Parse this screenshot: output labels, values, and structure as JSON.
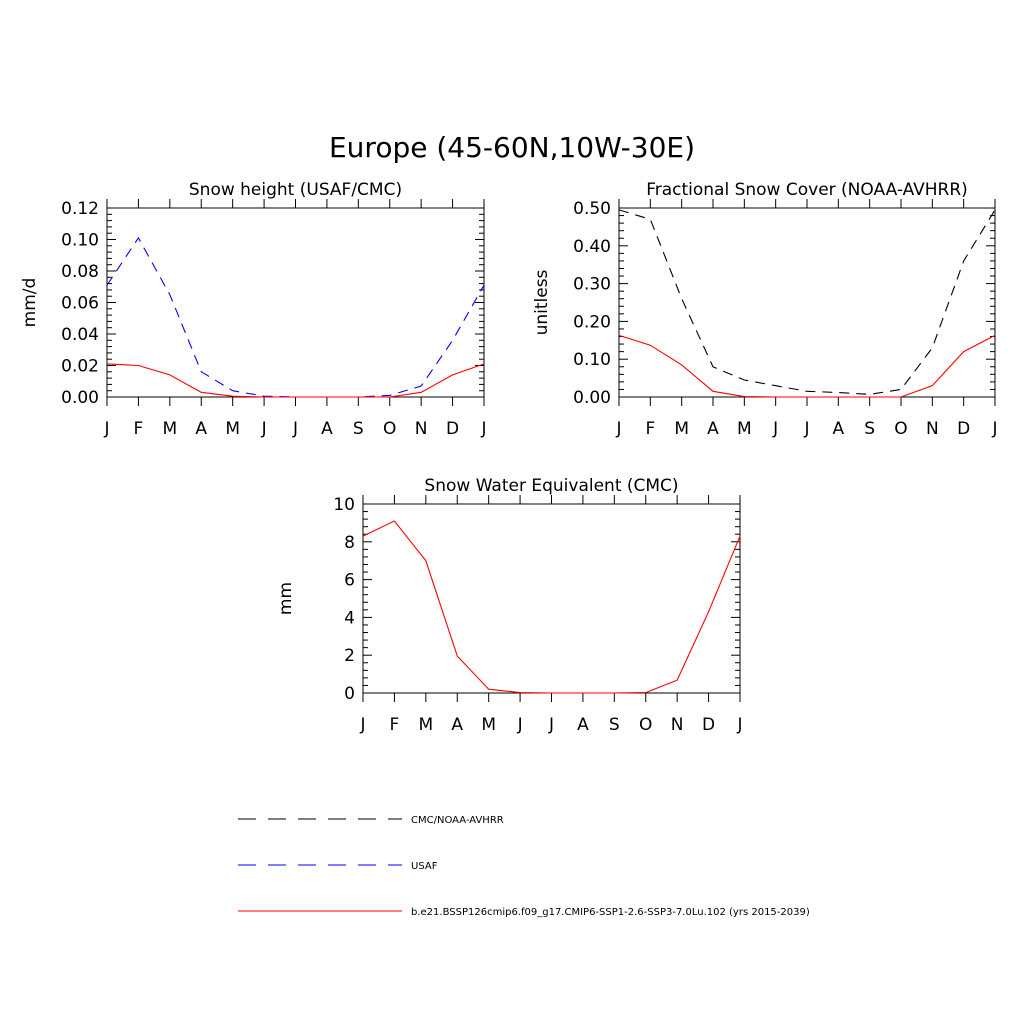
{
  "page": {
    "title": "Europe (45-60N,10W-30E)"
  },
  "months": [
    "J",
    "F",
    "M",
    "A",
    "M",
    "J",
    "J",
    "A",
    "S",
    "O",
    "N",
    "D",
    "J"
  ],
  "legend": [
    {
      "label": "CMC/NOAA-AVHRR",
      "color": "#000000",
      "dash": "dashed"
    },
    {
      "label": "USAF",
      "color": "#0000ff",
      "dash": "dashed"
    },
    {
      "label": "b.e21.BSSP126cmip6.f09_g17.CMIP6-SSP1-2.6-SSP3-7.0Lu.102 (yrs 2015-2039)",
      "color": "#ff0000",
      "dash": "solid"
    }
  ],
  "chart_data": [
    {
      "type": "line",
      "title": "Snow height (USAF/CMC)",
      "ylabel": "mm/d",
      "ylim": [
        0,
        0.12
      ],
      "yticks": [
        "0.00",
        "0.02",
        "0.04",
        "0.06",
        "0.08",
        "0.10",
        "0.12"
      ],
      "x": [
        "J",
        "F",
        "M",
        "A",
        "M",
        "J",
        "J",
        "A",
        "S",
        "O",
        "N",
        "D",
        "J"
      ],
      "series": [
        {
          "name": "CMC/NOAA-AVHRR",
          "color": "#000000",
          "dash": "dashed",
          "values": [
            0,
            0,
            0,
            0,
            0,
            0,
            0,
            0,
            0,
            0,
            0,
            0,
            0
          ]
        },
        {
          "name": "USAF",
          "color": "#0000ff",
          "dash": "dashed",
          "values": [
            0.071,
            0.101,
            0.065,
            0.016,
            0.004,
            0.0005,
            0,
            0,
            0,
            0.001,
            0.007,
            0.036,
            0.071
          ]
        },
        {
          "name": "b.e21.BSSP126cmip6.f09_g17.CMIP6-SSP1-2.6-SSP3-7.0Lu.102 (yrs 2015-2039)",
          "color": "#ff0000",
          "dash": "solid",
          "values": [
            0.021,
            0.02,
            0.014,
            0.003,
            0.0005,
            0,
            0,
            0,
            0,
            0,
            0.003,
            0.014,
            0.021
          ]
        }
      ]
    },
    {
      "type": "line",
      "title": "Fractional Snow Cover (NOAA-AVHRR)",
      "ylabel": "unitless",
      "ylim": [
        0,
        0.5
      ],
      "yticks": [
        "0.00",
        "0.10",
        "0.20",
        "0.30",
        "0.40",
        "0.50"
      ],
      "x": [
        "J",
        "F",
        "M",
        "A",
        "M",
        "J",
        "J",
        "A",
        "S",
        "O",
        "N",
        "D",
        "J"
      ],
      "series": [
        {
          "name": "CMC/NOAA-AVHRR",
          "color": "#000000",
          "dash": "dashed",
          "values": [
            0.495,
            0.47,
            0.26,
            0.08,
            0.045,
            0.03,
            0.015,
            0.012,
            0.007,
            0.02,
            0.13,
            0.36,
            0.495
          ]
        },
        {
          "name": "b.e21.BSSP126cmip6.f09_g17.CMIP6-SSP1-2.6-SSP3-7.0Lu.102 (yrs 2015-2039)",
          "color": "#ff0000",
          "dash": "solid",
          "values": [
            0.163,
            0.137,
            0.085,
            0.015,
            0.001,
            0,
            0,
            0,
            0,
            0,
            0.03,
            0.12,
            0.163
          ]
        }
      ]
    },
    {
      "type": "line",
      "title": "Snow Water Equivalent (CMC)",
      "ylabel": "mm",
      "ylim": [
        0,
        10
      ],
      "yticks": [
        "0",
        "2",
        "4",
        "6",
        "8",
        "10"
      ],
      "x": [
        "J",
        "F",
        "M",
        "A",
        "M",
        "J",
        "J",
        "A",
        "S",
        "O",
        "N",
        "D",
        "J"
      ],
      "series": [
        {
          "name": "CMC/NOAA-AVHRR",
          "color": "#000000",
          "dash": "dashed",
          "values": [
            0,
            0,
            0,
            0,
            0,
            0,
            0,
            0,
            0,
            0,
            0,
            0,
            0
          ]
        },
        {
          "name": "b.e21.BSSP126cmip6.f09_g17.CMIP6-SSP1-2.6-SSP3-7.0Lu.102 (yrs 2015-2039)",
          "color": "#ff0000",
          "dash": "solid",
          "values": [
            8.3,
            9.1,
            7.0,
            1.95,
            0.2,
            0.02,
            0,
            0,
            0,
            0.02,
            0.68,
            4.3,
            8.3
          ]
        }
      ]
    }
  ]
}
